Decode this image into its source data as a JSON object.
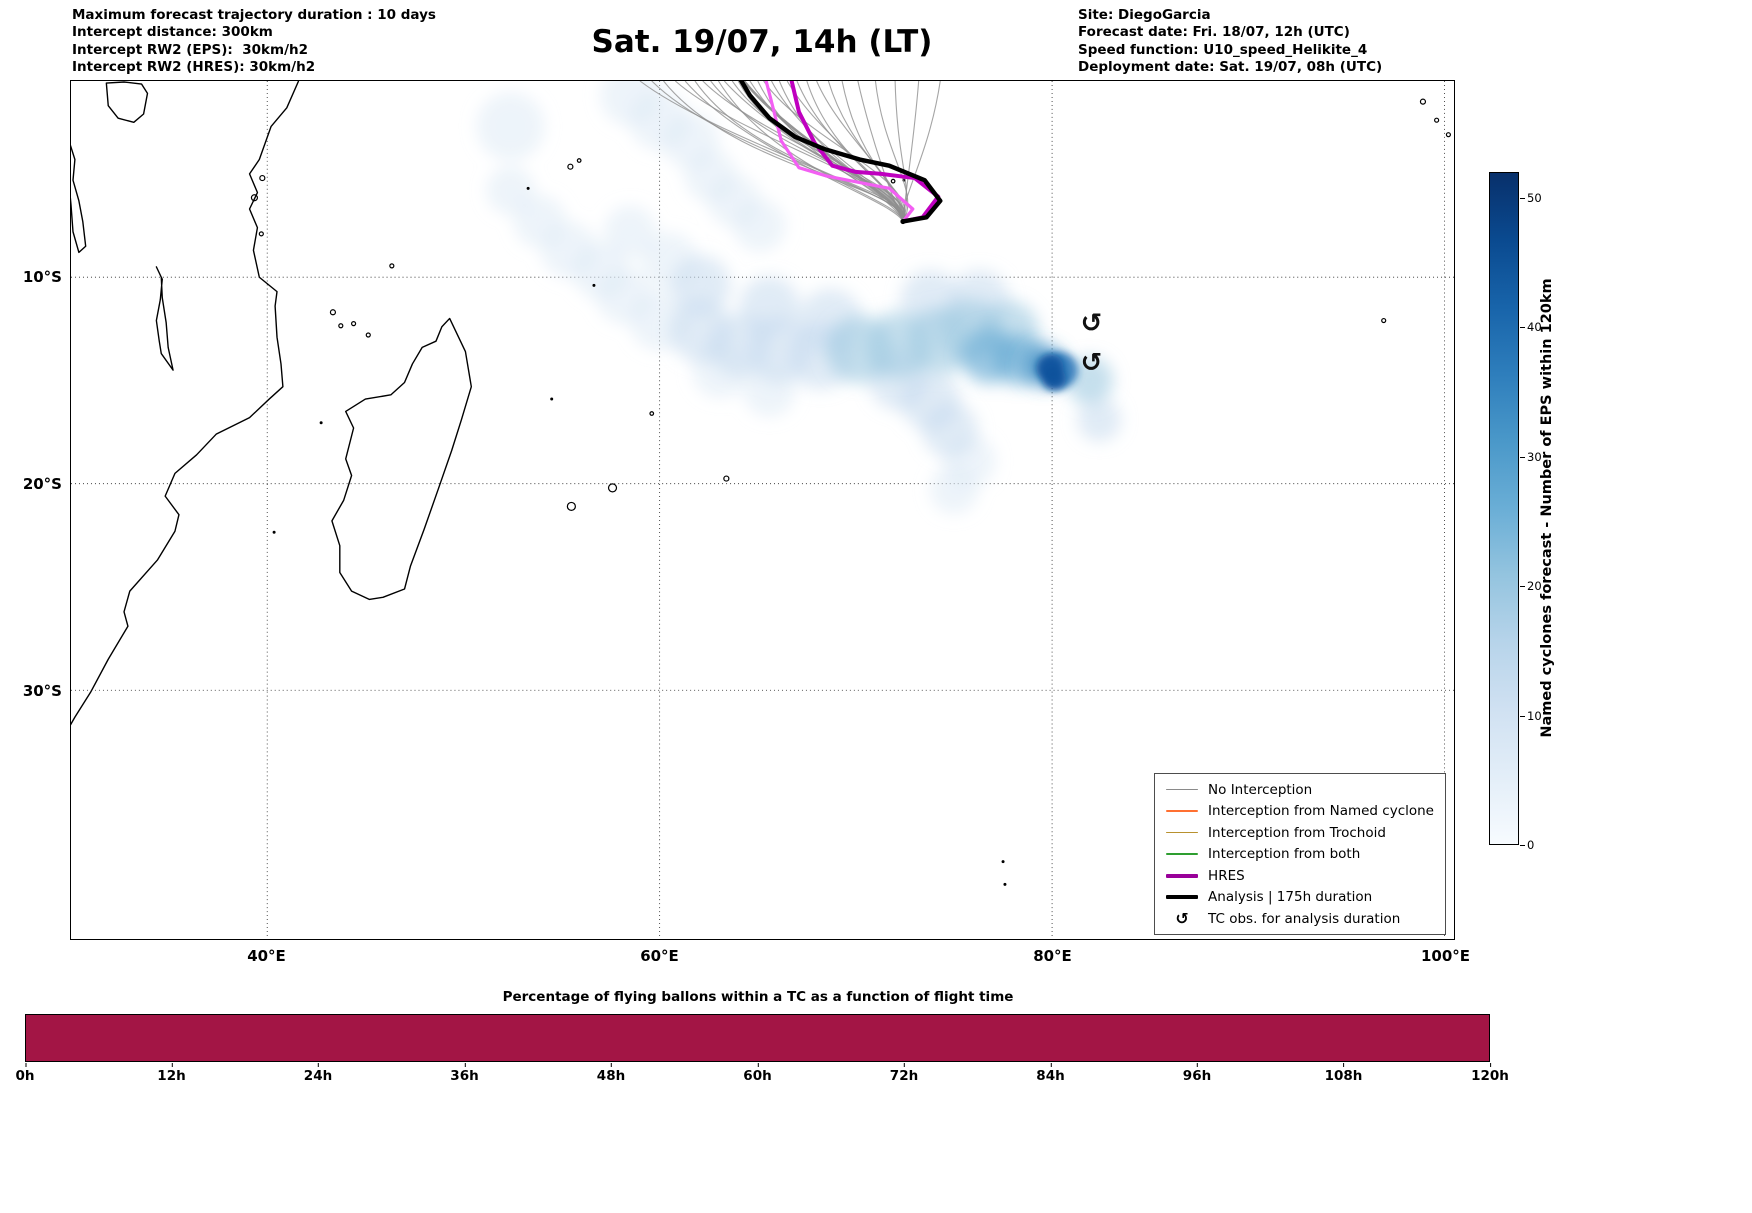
{
  "header": {
    "left_lines": [
      "Maximum forecast trajectory duration : 10 days",
      "Intercept distance: 300km",
      "Intercept RW2 (EPS):  30km/h2",
      "Intercept RW2 (HRES): 30km/h2"
    ],
    "title": "Sat. 19/07, 14h (LT)",
    "right_lines": [
      "Site: DiegoGarcia",
      "Forecast date: Fri. 18/07, 12h (UTC)",
      "Speed function: U10_speed_Helikite_4",
      "Deployment date: Sat. 19/07, 08h (UTC)"
    ]
  },
  "map": {
    "x_ticks": [
      {
        "label": "40°E",
        "lon": 40
      },
      {
        "label": "60°E",
        "lon": 60
      },
      {
        "label": "80°E",
        "lon": 80
      },
      {
        "label": "100°E",
        "lon": 100
      }
    ],
    "y_ticks": [
      {
        "label": "10°S",
        "lat": 10
      },
      {
        "label": "20°S",
        "lat": 20
      },
      {
        "label": "30°S",
        "lat": 30
      }
    ]
  },
  "legend": {
    "tc_symbol": "↺",
    "items": [
      {
        "label": "No Interception",
        "color": "#8a8a8a",
        "lw": 1.5
      },
      {
        "label": "Interception from Named cyclone",
        "color": "#ff7031",
        "lw": 1.5
      },
      {
        "label": "Interception from Trochoid",
        "color": "#b8912e",
        "lw": 1.5
      },
      {
        "label": "Interception from both",
        "color": "#2e9e30",
        "lw": 1.5
      },
      {
        "label": "HRES",
        "color": "#990099",
        "lw": 4
      },
      {
        "label": "Analysis | 175h duration",
        "color": "#000000",
        "lw": 4
      },
      {
        "label": "TC obs. for analysis duration",
        "marker": true
      }
    ]
  },
  "colorbar": {
    "label": "Named cyclones forecast - Number of EPS within 120km",
    "ticks": [
      0,
      10,
      20,
      30,
      40,
      50
    ],
    "vmax": 52,
    "colors": [
      "#f7fbff",
      "#e3eef8",
      "#d0e1f2",
      "#b7d4ea",
      "#94c4df",
      "#6aaed6",
      "#4a98c9",
      "#2e7ebc",
      "#1864aa",
      "#0a4a90",
      "#08306b"
    ]
  },
  "bottom_chart": {
    "title": "Percentage of flying ballons within a TC as a function of flight time",
    "x_ticks": [
      "0h",
      "12h",
      "24h",
      "36h",
      "48h",
      "60h",
      "72h",
      "84h",
      "96h",
      "108h",
      "120h"
    ],
    "bar_color": "#a31545"
  },
  "chart_data": {
    "type": "map",
    "map": {
      "projection": "PlateCarree",
      "lon_range": [
        30,
        100.5
      ],
      "lat_range_south": [
        0.5,
        42
      ],
      "gridline_lons": [
        40,
        60,
        80,
        100
      ],
      "gridline_lats_south": [
        10,
        20,
        30
      ]
    },
    "deployment": [
      72.4,
      7.3
    ],
    "colors": {
      "ensemble": "#8f8f8f",
      "analysis": "#000000",
      "hres": "#bf00bf",
      "hres_secondary": "#f35ff3"
    },
    "analysis_track": [
      [
        72.4,
        7.3
      ],
      [
        73.6,
        7.1
      ],
      [
        74.3,
        6.3
      ],
      [
        73.5,
        5.3
      ],
      [
        71.7,
        4.6
      ],
      [
        70.2,
        4.3
      ],
      [
        68.4,
        3.8
      ],
      [
        66.9,
        3.2
      ],
      [
        65.6,
        2.3
      ],
      [
        64.6,
        1.2
      ],
      [
        64.1,
        0.4
      ]
    ],
    "hres_track": [
      [
        72.4,
        7.3
      ],
      [
        73.4,
        7.1
      ],
      [
        74.2,
        6.1
      ],
      [
        73.0,
        5.2
      ],
      [
        71.3,
        5.0
      ],
      [
        70.0,
        4.9
      ],
      [
        68.8,
        4.6
      ],
      [
        67.9,
        3.5
      ],
      [
        67.1,
        2.0
      ],
      [
        66.7,
        0.4
      ]
    ],
    "hres_secondary_track": [
      [
        72.4,
        7.3
      ],
      [
        72.9,
        6.7
      ],
      [
        71.7,
        5.7
      ],
      [
        70.1,
        5.4
      ],
      [
        68.5,
        5.1
      ],
      [
        67.1,
        4.7
      ],
      [
        66.2,
        3.4
      ],
      [
        65.7,
        1.5
      ],
      [
        65.4,
        0.4
      ]
    ],
    "ensemble_exit_lons": [
      59.0,
      59.6,
      60.2,
      60.8,
      61.3,
      61.8,
      62.2,
      62.6,
      63.0,
      63.3,
      63.7,
      64.0,
      64.3,
      64.6,
      65.0,
      65.3,
      65.7,
      66.1,
      66.5,
      67.0,
      67.5,
      68.0,
      68.6,
      69.3,
      70.1,
      71.0,
      72.0,
      73.2,
      74.3
    ],
    "thick_member": 12,
    "tc_obs": [
      [
        82.0,
        12.2
      ],
      [
        82.0,
        14.1
      ]
    ],
    "density": {
      "units": "Number of EPS members within 120km",
      "peak_value": 52,
      "peak_location": [
        80.3,
        14.5
      ],
      "levels": [
        {
          "color": "#dbe9f6",
          "opacity": 0.5
        },
        {
          "color": "#c6dbef",
          "opacity": 0.55
        },
        {
          "color": "#9ecae1",
          "opacity": 0.6
        },
        {
          "color": "#6baed6",
          "opacity": 0.65
        },
        {
          "color": "#4292c6",
          "opacity": 0.7
        },
        {
          "color": "#2171b5",
          "opacity": 0.8
        },
        {
          "color": "#08519c",
          "opacity": 0.9
        }
      ],
      "blobs": [
        [
          52.4,
          2.7,
          34,
          0
        ],
        [
          58.5,
          1.2,
          30,
          0
        ],
        [
          60.0,
          2.4,
          30,
          0
        ],
        [
          61.6,
          3.4,
          28,
          0
        ],
        [
          62.6,
          5.1,
          26,
          0
        ],
        [
          63.8,
          6.3,
          26,
          0
        ],
        [
          65.1,
          7.5,
          26,
          0
        ],
        [
          52.4,
          5.8,
          24,
          0
        ],
        [
          53.9,
          7.3,
          26,
          0
        ],
        [
          55.4,
          8.7,
          28,
          0
        ],
        [
          57.0,
          9.7,
          28,
          0
        ],
        [
          58.2,
          10.9,
          28,
          0
        ],
        [
          60.0,
          12.1,
          30,
          0
        ],
        [
          58.5,
          7.8,
          26,
          0
        ],
        [
          60.5,
          9.2,
          28,
          0
        ],
        [
          63.1,
          14.5,
          28,
          0
        ],
        [
          65.6,
          15.5,
          26,
          0
        ],
        [
          75.8,
          18.9,
          26,
          0
        ],
        [
          75.0,
          20.3,
          24,
          0
        ],
        [
          62.1,
          10.4,
          30,
          1
        ],
        [
          65.6,
          11.4,
          30,
          1
        ],
        [
          68.7,
          12.1,
          32,
          1
        ],
        [
          62.1,
          12.6,
          32,
          1
        ],
        [
          64.1,
          13.3,
          32,
          1
        ],
        [
          66.1,
          13.5,
          34,
          1
        ],
        [
          68.2,
          13.8,
          34,
          1
        ],
        [
          73.8,
          11.1,
          30,
          1
        ],
        [
          76.3,
          11.1,
          30,
          1
        ],
        [
          82.4,
          16.9,
          22,
          1
        ],
        [
          73.8,
          16.0,
          30,
          1
        ],
        [
          74.8,
          17.4,
          28,
          1
        ],
        [
          72.2,
          15.0,
          30,
          1
        ],
        [
          70.2,
          13.5,
          34,
          2
        ],
        [
          72.2,
          13.3,
          34,
          2
        ],
        [
          74.3,
          13.1,
          34,
          2
        ],
        [
          75.8,
          12.6,
          32,
          2
        ],
        [
          77.8,
          12.6,
          30,
          2
        ],
        [
          81.9,
          15.0,
          24,
          2
        ],
        [
          76.8,
          13.8,
          28,
          3
        ],
        [
          78.3,
          14.0,
          26,
          3
        ],
        [
          79.6,
          14.3,
          22,
          4
        ],
        [
          80.4,
          14.5,
          18,
          5
        ],
        [
          79.9,
          14.4,
          14,
          6
        ],
        [
          80.1,
          14.9,
          12,
          6
        ]
      ]
    },
    "geography": {
      "open_coastlines": [
        [
          [
            41.6,
            0.5
          ],
          [
            41.0,
            1.8
          ],
          [
            40.2,
            2.7
          ],
          [
            39.6,
            4.3
          ],
          [
            39.1,
            5.0
          ],
          [
            39.5,
            5.9
          ],
          [
            39.1,
            6.7
          ],
          [
            39.5,
            7.6
          ],
          [
            39.3,
            8.7
          ],
          [
            39.6,
            10.0
          ],
          [
            40.5,
            10.7
          ],
          [
            40.4,
            11.4
          ],
          [
            40.5,
            12.9
          ],
          [
            40.7,
            14.2
          ],
          [
            40.8,
            15.3
          ],
          [
            40.1,
            15.9
          ],
          [
            39.1,
            16.8
          ],
          [
            37.4,
            17.6
          ],
          [
            36.4,
            18.6
          ],
          [
            35.3,
            19.5
          ],
          [
            34.8,
            20.6
          ],
          [
            35.5,
            21.5
          ],
          [
            35.3,
            22.3
          ],
          [
            34.4,
            23.7
          ],
          [
            33.0,
            25.2
          ],
          [
            32.7,
            26.2
          ],
          [
            32.9,
            26.9
          ],
          [
            31.9,
            28.5
          ],
          [
            31.0,
            30.1
          ],
          [
            30.2,
            31.3
          ],
          [
            29.9,
            31.8
          ]
        ]
      ],
      "closed_coastlines": [
        [
          [
            49.3,
            12.0
          ],
          [
            50.1,
            13.6
          ],
          [
            50.4,
            15.3
          ],
          [
            49.9,
            16.9
          ],
          [
            49.4,
            18.4
          ],
          [
            48.7,
            20.3
          ],
          [
            48.0,
            22.2
          ],
          [
            47.3,
            24.0
          ],
          [
            47.0,
            25.1
          ],
          [
            45.9,
            25.5
          ],
          [
            45.2,
            25.6
          ],
          [
            44.3,
            25.2
          ],
          [
            43.7,
            24.3
          ],
          [
            43.7,
            23.0
          ],
          [
            43.3,
            21.8
          ],
          [
            43.9,
            20.8
          ],
          [
            44.3,
            19.6
          ],
          [
            44.0,
            18.8
          ],
          [
            44.4,
            17.3
          ],
          [
            44.0,
            16.5
          ],
          [
            45.0,
            15.9
          ],
          [
            46.3,
            15.7
          ],
          [
            47.0,
            15.1
          ],
          [
            47.4,
            14.2
          ],
          [
            47.9,
            13.4
          ],
          [
            48.6,
            13.1
          ],
          [
            48.9,
            12.4
          ]
        ],
        [
          [
            31.8,
            0.6
          ],
          [
            32.7,
            0.55
          ],
          [
            33.6,
            0.65
          ],
          [
            33.9,
            1.1
          ],
          [
            33.7,
            2.1
          ],
          [
            33.2,
            2.5
          ],
          [
            32.4,
            2.3
          ],
          [
            31.9,
            1.7
          ]
        ],
        [
          [
            34.35,
            9.5
          ],
          [
            34.65,
            10.1
          ],
          [
            34.55,
            11.1
          ],
          [
            34.35,
            12.1
          ],
          [
            34.5,
            13.1
          ],
          [
            34.6,
            13.7
          ],
          [
            35.2,
            14.5
          ],
          [
            34.95,
            13.4
          ],
          [
            34.85,
            12.2
          ],
          [
            34.65,
            11.0
          ],
          [
            34.6,
            10.0
          ]
        ],
        [
          [
            29.9,
            3.4
          ],
          [
            30.2,
            4.3
          ],
          [
            30.1,
            5.3
          ],
          [
            30.4,
            6.3
          ],
          [
            30.6,
            7.3
          ],
          [
            30.75,
            8.5
          ],
          [
            30.4,
            8.8
          ],
          [
            30.1,
            7.8
          ],
          [
            30.0,
            6.5
          ],
          [
            29.85,
            5.0
          ]
        ]
      ],
      "islands": [
        [
          39.35,
          6.15,
          3
        ],
        [
          39.75,
          5.2,
          2.5
        ],
        [
          39.7,
          7.9,
          2
        ],
        [
          43.35,
          11.7,
          2.5
        ],
        [
          43.75,
          12.35,
          2
        ],
        [
          44.4,
          12.25,
          2
        ],
        [
          45.15,
          12.8,
          2
        ],
        [
          46.35,
          9.45,
          2
        ],
        [
          40.35,
          22.35,
          1.5
        ],
        [
          42.75,
          17.05,
          1.5
        ],
        [
          53.3,
          5.7,
          1.5
        ],
        [
          55.45,
          4.65,
          2.5
        ],
        [
          55.9,
          4.35,
          1.8
        ],
        [
          54.5,
          15.9,
          1.5
        ],
        [
          56.65,
          10.4,
          1.5
        ],
        [
          59.6,
          16.6,
          1.8
        ],
        [
          55.5,
          21.1,
          4
        ],
        [
          57.6,
          20.2,
          4
        ],
        [
          63.4,
          19.75,
          2.5
        ],
        [
          71.9,
          5.35,
          1.8
        ],
        [
          72.45,
          5.3,
          1.5
        ],
        [
          72.4,
          7.3,
          2
        ],
        [
          96.9,
          12.1,
          2
        ],
        [
          98.9,
          1.5,
          2.5
        ],
        [
          99.6,
          2.4,
          2
        ],
        [
          100.2,
          3.1,
          2
        ],
        [
          77.5,
          38.3,
          1.5
        ],
        [
          77.6,
          39.4,
          1.5
        ]
      ]
    },
    "bottom_bar": {
      "type": "bar",
      "x_hours_range": [
        0,
        120
      ],
      "percent_constant": 100
    }
  }
}
